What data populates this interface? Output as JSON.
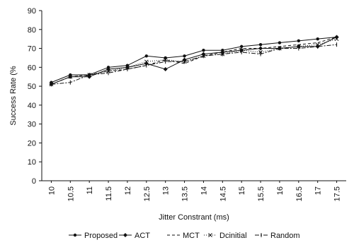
{
  "chart_data": {
    "type": "line",
    "xlabel": "Jitter Constrant (ms)",
    "ylabel": "Success Rate (%",
    "ylim": [
      0,
      90
    ],
    "yticks": [
      0,
      10,
      20,
      30,
      40,
      50,
      60,
      70,
      80,
      90
    ],
    "grid": false,
    "legend_position": "bottom",
    "categories": [
      "10",
      "10.5",
      "11",
      "11.5",
      "12",
      "12.5",
      "13",
      "13.5",
      "14",
      "14.5",
      "15",
      "15.5",
      "16",
      "16.5",
      "17",
      "17.5"
    ],
    "series": [
      {
        "name": "Proposed",
        "color": "#111111",
        "marker": "dot",
        "dash": "",
        "values": [
          52,
          56,
          56,
          60,
          61,
          66,
          65,
          66,
          69,
          69,
          71,
          72,
          73,
          74,
          75,
          76
        ]
      },
      {
        "name": "ACT",
        "color": "#111111",
        "marker": "diamond",
        "dash": "",
        "values": [
          51,
          55,
          55,
          59,
          60,
          62,
          59,
          64,
          67,
          68,
          69,
          70,
          70,
          71,
          71,
          76
        ]
      },
      {
        "name": "MCT",
        "color": "#111111",
        "marker": "none",
        "dash": "4,3",
        "values": [
          51,
          55,
          56,
          58,
          59,
          61,
          64,
          62,
          66,
          68,
          70,
          70,
          71,
          72,
          73,
          76
        ]
      },
      {
        "name": "Dcinitial",
        "color": "#111111",
        "marker": "cross",
        "dash": "1,2",
        "values": [
          51,
          55,
          56,
          58,
          60,
          63,
          64,
          63,
          66,
          67,
          69,
          68,
          70,
          71,
          72,
          75
        ]
      },
      {
        "name": "Random",
        "color": "#111111",
        "marker": "tick",
        "dash": "6,2,2,2",
        "values": [
          51,
          52,
          56,
          57,
          59,
          61,
          63,
          63,
          66,
          67,
          68,
          67,
          70,
          70,
          71,
          72
        ]
      }
    ]
  }
}
